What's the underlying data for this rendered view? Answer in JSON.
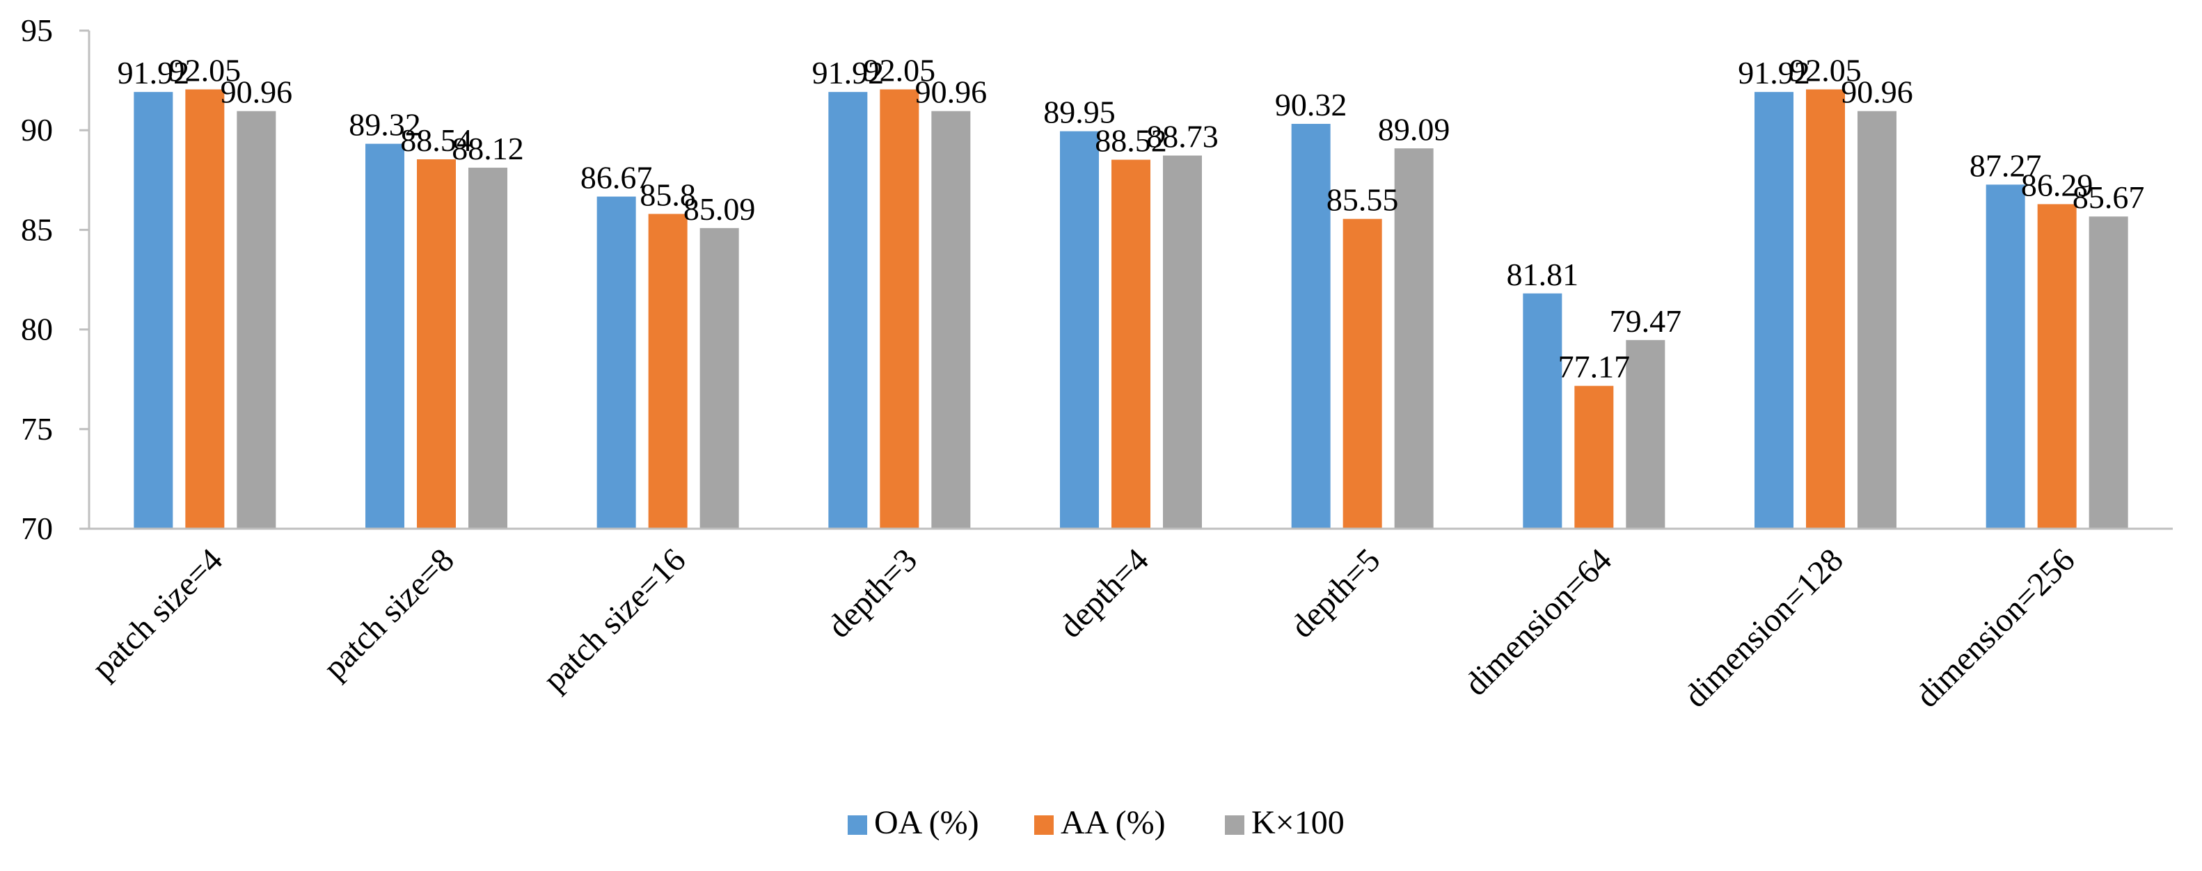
{
  "chart_data": {
    "type": "bar",
    "title": "",
    "xlabel": "",
    "ylabel": "",
    "ylim": [
      70,
      95
    ],
    "yticks": [
      70,
      75,
      80,
      85,
      90,
      95
    ],
    "grid": false,
    "legend_position": "bottom",
    "categories": [
      "patch size=4",
      "patch size=8",
      "patch size=16",
      "depth=3",
      "depth=4",
      "depth=5",
      "dimension=64",
      "dimension=128",
      "dimension=256"
    ],
    "series": [
      {
        "name": "OA (%)",
        "color": "#5b9bd5",
        "values": [
          91.92,
          89.32,
          86.67,
          91.92,
          89.95,
          90.32,
          81.81,
          91.92,
          87.27
        ],
        "labels": [
          "91.92",
          "89.32",
          "86.67",
          "91.92",
          "89.95",
          "90.32",
          "81.81",
          "91.92",
          "87.27"
        ]
      },
      {
        "name": "AA (%)",
        "color": "#ed7d31",
        "values": [
          92.05,
          88.54,
          85.8,
          92.05,
          88.52,
          85.55,
          77.17,
          92.05,
          86.29
        ],
        "labels": [
          "92.05",
          "88.54",
          "85.8",
          "92.05",
          "88.52",
          "85.55",
          "77.17",
          "92.05",
          "86.29"
        ]
      },
      {
        "name": "K×100",
        "color": "#a5a5a5",
        "values": [
          90.96,
          88.12,
          85.09,
          90.96,
          88.73,
          89.09,
          79.47,
          90.96,
          85.67
        ],
        "labels": [
          "90.96",
          "88.12",
          "85.09",
          "90.96",
          "88.73",
          "89.09",
          "79.47",
          "90.96",
          "85.67"
        ]
      }
    ]
  }
}
